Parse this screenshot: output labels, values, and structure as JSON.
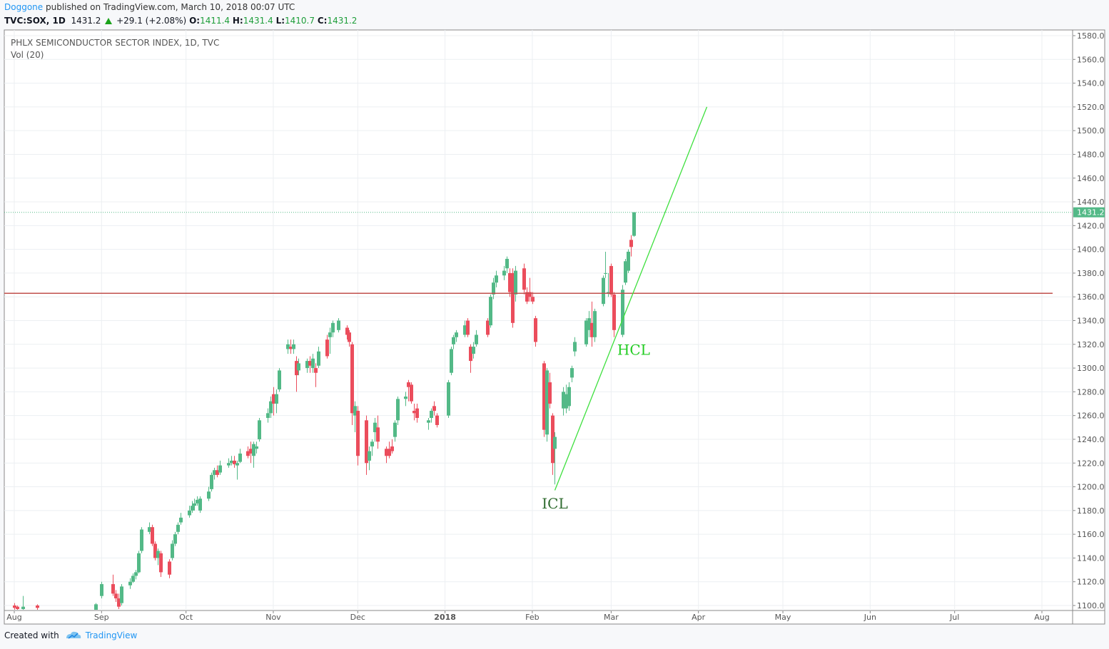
{
  "header": {
    "author": "Doggone",
    "published": "published on TradingView.com, March 10, 2018 00:07 UTC",
    "symbol": "TVC:SOX, 1D",
    "last": "1431.2",
    "change": "+29.1 (+2.08%)",
    "o_label": "O:",
    "o_value": "1411.4",
    "h_label": "H:",
    "h_value": "1431.4",
    "l_label": "L:",
    "l_value": "1410.7",
    "c_label": "C:",
    "c_value": "1431.2"
  },
  "legend": {
    "title": "PHLX SEMICONDUCTOR SECTOR INDEX, 1D, TVC",
    "study": "Vol (20)"
  },
  "footer": {
    "created_with": "Created with",
    "brand": "TradingView"
  },
  "colors": {
    "up": "#53b987",
    "down": "#eb4d5c",
    "trendline": "#3ee03e",
    "hline": "#c0504d",
    "price_tag": "#53b987",
    "icl_text": "#2f6b2f",
    "hcl_text": "#22cc22"
  },
  "chart_data": {
    "type": "candlestick",
    "title": "PHLX SEMICONDUCTOR SECTOR INDEX, 1D, TVC",
    "x_tick_labels": [
      "Aug",
      "Sep",
      "Oct",
      "Nov",
      "Dec",
      "2018",
      "Feb",
      "Mar",
      "Apr",
      "May",
      "Jun",
      "Jul",
      "Aug"
    ],
    "y_tick_labels": [
      "1100.0",
      "1120.0",
      "1140.0",
      "1160.0",
      "1180.0",
      "1200.0",
      "1220.0",
      "1240.0",
      "1260.0",
      "1280.0",
      "1300.0",
      "1320.0",
      "1340.0",
      "1360.0",
      "1380.0",
      "1400.0",
      "1420.0",
      "1440.0",
      "1460.0",
      "1480.0",
      "1500.0",
      "1520.0",
      "1540.0",
      "1560.0",
      "1580.0"
    ],
    "ylim": [
      1100,
      1580
    ],
    "last_price": 1431.2,
    "last_price_label": "1431.2",
    "horizontal_line": 1363,
    "trendline": {
      "from": {
        "date": "2018-02-09",
        "value": 1197
      },
      "to": {
        "date": "2018-04-04",
        "value": 1520
      }
    },
    "annotations": [
      {
        "text": "ICL",
        "date": "2018-02-09",
        "value": 1190
      },
      {
        "text": "HCL",
        "date": "2018-03-09",
        "value": 1316
      }
    ],
    "candles": [
      {
        "date": "2017-08-01",
        "o": 1100,
        "h": 1102,
        "l": 1095,
        "c": 1098
      },
      {
        "date": "2017-08-02",
        "o": 1099,
        "h": 1100,
        "l": 1094,
        "c": 1097
      },
      {
        "date": "2017-08-04",
        "o": 1097,
        "h": 1108,
        "l": 1094,
        "c": 1099
      },
      {
        "date": "2017-08-09",
        "o": 1100,
        "h": 1101,
        "l": 1095,
        "c": 1098
      },
      {
        "date": "2017-08-30",
        "o": 1094,
        "h": 1102,
        "l": 1092,
        "c": 1101
      },
      {
        "date": "2017-09-01",
        "o": 1108,
        "h": 1120,
        "l": 1106,
        "c": 1118
      },
      {
        "date": "2017-09-05",
        "o": 1118,
        "h": 1126,
        "l": 1108,
        "c": 1110
      },
      {
        "date": "2017-09-06",
        "o": 1110,
        "h": 1113,
        "l": 1103,
        "c": 1106
      },
      {
        "date": "2017-09-07",
        "o": 1106,
        "h": 1110,
        "l": 1097,
        "c": 1099
      },
      {
        "date": "2017-09-08",
        "o": 1102,
        "h": 1118,
        "l": 1100,
        "c": 1116
      },
      {
        "date": "2017-09-11",
        "o": 1117,
        "h": 1123,
        "l": 1114,
        "c": 1120
      },
      {
        "date": "2017-09-12",
        "o": 1120,
        "h": 1127,
        "l": 1119,
        "c": 1125
      },
      {
        "date": "2017-09-13",
        "o": 1125,
        "h": 1130,
        "l": 1122,
        "c": 1128
      },
      {
        "date": "2017-09-14",
        "o": 1128,
        "h": 1146,
        "l": 1127,
        "c": 1144
      },
      {
        "date": "2017-09-15",
        "o": 1146,
        "h": 1166,
        "l": 1144,
        "c": 1164
      },
      {
        "date": "2017-09-18",
        "o": 1162,
        "h": 1170,
        "l": 1160,
        "c": 1166
      },
      {
        "date": "2017-09-19",
        "o": 1166,
        "h": 1168,
        "l": 1150,
        "c": 1152
      },
      {
        "date": "2017-09-20",
        "o": 1152,
        "h": 1154,
        "l": 1138,
        "c": 1140
      },
      {
        "date": "2017-09-21",
        "o": 1140,
        "h": 1148,
        "l": 1134,
        "c": 1146
      },
      {
        "date": "2017-09-22",
        "o": 1144,
        "h": 1146,
        "l": 1124,
        "c": 1128
      },
      {
        "date": "2017-09-25",
        "o": 1137,
        "h": 1139,
        "l": 1123,
        "c": 1126
      },
      {
        "date": "2017-09-26",
        "o": 1140,
        "h": 1155,
        "l": 1138,
        "c": 1152
      },
      {
        "date": "2017-09-27",
        "o": 1152,
        "h": 1162,
        "l": 1150,
        "c": 1160
      },
      {
        "date": "2017-09-28",
        "o": 1162,
        "h": 1170,
        "l": 1160,
        "c": 1168
      },
      {
        "date": "2017-09-29",
        "o": 1170,
        "h": 1178,
        "l": 1168,
        "c": 1174
      },
      {
        "date": "2017-10-02",
        "o": 1176,
        "h": 1184,
        "l": 1174,
        "c": 1180
      },
      {
        "date": "2017-10-03",
        "o": 1180,
        "h": 1188,
        "l": 1178,
        "c": 1184
      },
      {
        "date": "2017-10-04",
        "o": 1184,
        "h": 1190,
        "l": 1180,
        "c": 1186
      },
      {
        "date": "2017-10-05",
        "o": 1186,
        "h": 1192,
        "l": 1184,
        "c": 1189
      },
      {
        "date": "2017-10-06",
        "o": 1180,
        "h": 1192,
        "l": 1178,
        "c": 1190
      },
      {
        "date": "2017-10-09",
        "o": 1190,
        "h": 1200,
        "l": 1188,
        "c": 1196
      },
      {
        "date": "2017-10-10",
        "o": 1198,
        "h": 1212,
        "l": 1196,
        "c": 1210
      },
      {
        "date": "2017-10-11",
        "o": 1210,
        "h": 1216,
        "l": 1206,
        "c": 1214
      },
      {
        "date": "2017-10-12",
        "o": 1214,
        "h": 1218,
        "l": 1208,
        "c": 1210
      },
      {
        "date": "2017-10-13",
        "o": 1212,
        "h": 1222,
        "l": 1210,
        "c": 1218
      },
      {
        "date": "2017-10-16",
        "o": 1218,
        "h": 1224,
        "l": 1216,
        "c": 1220
      },
      {
        "date": "2017-10-17",
        "o": 1220,
        "h": 1226,
        "l": 1218,
        "c": 1222
      },
      {
        "date": "2017-10-18",
        "o": 1222,
        "h": 1226,
        "l": 1216,
        "c": 1219
      },
      {
        "date": "2017-10-19",
        "o": 1218,
        "h": 1222,
        "l": 1206,
        "c": 1220
      },
      {
        "date": "2017-10-20",
        "o": 1221,
        "h": 1232,
        "l": 1220,
        "c": 1228
      },
      {
        "date": "2017-10-23",
        "o": 1230,
        "h": 1234,
        "l": 1224,
        "c": 1226
      },
      {
        "date": "2017-10-24",
        "o": 1232,
        "h": 1238,
        "l": 1220,
        "c": 1228
      },
      {
        "date": "2017-10-25",
        "o": 1226,
        "h": 1238,
        "l": 1216,
        "c": 1236
      },
      {
        "date": "2017-10-26",
        "o": 1232,
        "h": 1238,
        "l": 1228,
        "c": 1234
      },
      {
        "date": "2017-10-27",
        "o": 1240,
        "h": 1258,
        "l": 1238,
        "c": 1256
      },
      {
        "date": "2017-10-30",
        "o": 1258,
        "h": 1266,
        "l": 1254,
        "c": 1262
      },
      {
        "date": "2017-10-31",
        "o": 1262,
        "h": 1276,
        "l": 1258,
        "c": 1272
      },
      {
        "date": "2017-11-01",
        "o": 1278,
        "h": 1284,
        "l": 1260,
        "c": 1270
      },
      {
        "date": "2017-11-02",
        "o": 1270,
        "h": 1282,
        "l": 1262,
        "c": 1278
      },
      {
        "date": "2017-11-03",
        "o": 1282,
        "h": 1300,
        "l": 1280,
        "c": 1298
      },
      {
        "date": "2017-11-06",
        "o": 1316,
        "h": 1324,
        "l": 1312,
        "c": 1320
      },
      {
        "date": "2017-11-07",
        "o": 1318,
        "h": 1324,
        "l": 1312,
        "c": 1316
      },
      {
        "date": "2017-11-08",
        "o": 1316,
        "h": 1324,
        "l": 1312,
        "c": 1320
      },
      {
        "date": "2017-11-09",
        "o": 1306,
        "h": 1310,
        "l": 1280,
        "c": 1294
      },
      {
        "date": "2017-11-10",
        "o": 1298,
        "h": 1308,
        "l": 1294,
        "c": 1304
      },
      {
        "date": "2017-11-13",
        "o": 1300,
        "h": 1308,
        "l": 1296,
        "c": 1306
      },
      {
        "date": "2017-11-14",
        "o": 1306,
        "h": 1310,
        "l": 1296,
        "c": 1302
      },
      {
        "date": "2017-11-15",
        "o": 1300,
        "h": 1312,
        "l": 1296,
        "c": 1308
      },
      {
        "date": "2017-11-16",
        "o": 1300,
        "h": 1304,
        "l": 1284,
        "c": 1296
      },
      {
        "date": "2017-11-17",
        "o": 1302,
        "h": 1318,
        "l": 1300,
        "c": 1314
      },
      {
        "date": "2017-11-20",
        "o": 1324,
        "h": 1328,
        "l": 1308,
        "c": 1310
      },
      {
        "date": "2017-11-21",
        "o": 1326,
        "h": 1334,
        "l": 1312,
        "c": 1330
      },
      {
        "date": "2017-11-22",
        "o": 1330,
        "h": 1340,
        "l": 1326,
        "c": 1338
      },
      {
        "date": "2017-11-24",
        "o": 1332,
        "h": 1342,
        "l": 1330,
        "c": 1340
      },
      {
        "date": "2017-11-27",
        "o": 1334,
        "h": 1336,
        "l": 1324,
        "c": 1328
      },
      {
        "date": "2017-11-28",
        "o": 1330,
        "h": 1332,
        "l": 1318,
        "c": 1322
      },
      {
        "date": "2017-11-29",
        "o": 1320,
        "h": 1322,
        "l": 1252,
        "c": 1262
      },
      {
        "date": "2017-11-30",
        "o": 1260,
        "h": 1272,
        "l": 1246,
        "c": 1268
      },
      {
        "date": "2017-12-01",
        "o": 1264,
        "h": 1268,
        "l": 1218,
        "c": 1226
      },
      {
        "date": "2017-12-04",
        "o": 1256,
        "h": 1260,
        "l": 1210,
        "c": 1220
      },
      {
        "date": "2017-12-05",
        "o": 1222,
        "h": 1234,
        "l": 1214,
        "c": 1230
      },
      {
        "date": "2017-12-06",
        "o": 1234,
        "h": 1240,
        "l": 1226,
        "c": 1238
      },
      {
        "date": "2017-12-07",
        "o": 1246,
        "h": 1258,
        "l": 1238,
        "c": 1254
      },
      {
        "date": "2017-12-08",
        "o": 1250,
        "h": 1260,
        "l": 1232,
        "c": 1238
      },
      {
        "date": "2017-12-11",
        "o": 1232,
        "h": 1234,
        "l": 1220,
        "c": 1226
      },
      {
        "date": "2017-12-12",
        "o": 1232,
        "h": 1238,
        "l": 1224,
        "c": 1226
      },
      {
        "date": "2017-12-13",
        "o": 1234,
        "h": 1240,
        "l": 1228,
        "c": 1230
      },
      {
        "date": "2017-12-14",
        "o": 1242,
        "h": 1256,
        "l": 1238,
        "c": 1254
      },
      {
        "date": "2017-12-15",
        "o": 1256,
        "h": 1276,
        "l": 1252,
        "c": 1274
      },
      {
        "date": "2017-12-18",
        "o": 1274,
        "h": 1280,
        "l": 1268,
        "c": 1276
      },
      {
        "date": "2017-12-19",
        "o": 1288,
        "h": 1290,
        "l": 1272,
        "c": 1284
      },
      {
        "date": "2017-12-20",
        "o": 1286,
        "h": 1288,
        "l": 1270,
        "c": 1272
      },
      {
        "date": "2017-12-21",
        "o": 1264,
        "h": 1270,
        "l": 1256,
        "c": 1262
      },
      {
        "date": "2017-12-22",
        "o": 1266,
        "h": 1270,
        "l": 1254,
        "c": 1258
      },
      {
        "date": "2017-12-26",
        "o": 1254,
        "h": 1258,
        "l": 1248,
        "c": 1256
      },
      {
        "date": "2017-12-27",
        "o": 1258,
        "h": 1266,
        "l": 1254,
        "c": 1264
      },
      {
        "date": "2017-12-28",
        "o": 1268,
        "h": 1272,
        "l": 1260,
        "c": 1264
      },
      {
        "date": "2017-12-29",
        "o": 1260,
        "h": 1262,
        "l": 1250,
        "c": 1252
      },
      {
        "date": "2018-01-02",
        "o": 1260,
        "h": 1290,
        "l": 1258,
        "c": 1288
      },
      {
        "date": "2018-01-03",
        "o": 1296,
        "h": 1318,
        "l": 1294,
        "c": 1316
      },
      {
        "date": "2018-01-04",
        "o": 1320,
        "h": 1328,
        "l": 1316,
        "c": 1326
      },
      {
        "date": "2018-01-05",
        "o": 1326,
        "h": 1332,
        "l": 1322,
        "c": 1330
      },
      {
        "date": "2018-01-08",
        "o": 1328,
        "h": 1340,
        "l": 1326,
        "c": 1336
      },
      {
        "date": "2018-01-09",
        "o": 1340,
        "h": 1342,
        "l": 1326,
        "c": 1328
      },
      {
        "date": "2018-01-10",
        "o": 1318,
        "h": 1320,
        "l": 1296,
        "c": 1306
      },
      {
        "date": "2018-01-11",
        "o": 1312,
        "h": 1322,
        "l": 1308,
        "c": 1318
      },
      {
        "date": "2018-01-12",
        "o": 1320,
        "h": 1332,
        "l": 1318,
        "c": 1328
      },
      {
        "date": "2018-01-16",
        "o": 1340,
        "h": 1342,
        "l": 1326,
        "c": 1328
      },
      {
        "date": "2018-01-17",
        "o": 1336,
        "h": 1362,
        "l": 1334,
        "c": 1360
      },
      {
        "date": "2018-01-18",
        "o": 1362,
        "h": 1376,
        "l": 1358,
        "c": 1372
      },
      {
        "date": "2018-01-19",
        "o": 1372,
        "h": 1382,
        "l": 1368,
        "c": 1378
      },
      {
        "date": "2018-01-22",
        "o": 1378,
        "h": 1386,
        "l": 1374,
        "c": 1382
      },
      {
        "date": "2018-01-23",
        "o": 1384,
        "h": 1394,
        "l": 1380,
        "c": 1392
      },
      {
        "date": "2018-01-24",
        "o": 1380,
        "h": 1384,
        "l": 1360,
        "c": 1364
      },
      {
        "date": "2018-01-25",
        "o": 1380,
        "h": 1384,
        "l": 1334,
        "c": 1338
      },
      {
        "date": "2018-01-26",
        "o": 1362,
        "h": 1386,
        "l": 1356,
        "c": 1382
      },
      {
        "date": "2018-01-29",
        "o": 1384,
        "h": 1388,
        "l": 1362,
        "c": 1366
      },
      {
        "date": "2018-01-30",
        "o": 1364,
        "h": 1368,
        "l": 1354,
        "c": 1356
      },
      {
        "date": "2018-01-31",
        "o": 1364,
        "h": 1376,
        "l": 1356,
        "c": 1360
      },
      {
        "date": "2018-02-01",
        "o": 1360,
        "h": 1364,
        "l": 1354,
        "c": 1356
      },
      {
        "date": "2018-02-02",
        "o": 1342,
        "h": 1344,
        "l": 1318,
        "c": 1322
      },
      {
        "date": "2018-02-05",
        "o": 1304,
        "h": 1306,
        "l": 1242,
        "c": 1248
      },
      {
        "date": "2018-02-06",
        "o": 1244,
        "h": 1300,
        "l": 1238,
        "c": 1298
      },
      {
        "date": "2018-02-07",
        "o": 1288,
        "h": 1296,
        "l": 1266,
        "c": 1270
      },
      {
        "date": "2018-02-08",
        "o": 1260,
        "h": 1262,
        "l": 1210,
        "c": 1220
      },
      {
        "date": "2018-02-09",
        "o": 1232,
        "h": 1246,
        "l": 1202,
        "c": 1242
      },
      {
        "date": "2018-02-12",
        "o": 1266,
        "h": 1284,
        "l": 1260,
        "c": 1280
      },
      {
        "date": "2018-02-13",
        "o": 1266,
        "h": 1286,
        "l": 1262,
        "c": 1278
      },
      {
        "date": "2018-02-14",
        "o": 1268,
        "h": 1288,
        "l": 1264,
        "c": 1284
      },
      {
        "date": "2018-02-15",
        "o": 1292,
        "h": 1302,
        "l": 1288,
        "c": 1300
      },
      {
        "date": "2018-02-16",
        "o": 1314,
        "h": 1326,
        "l": 1310,
        "c": 1322
      },
      {
        "date": "2018-02-20",
        "o": 1320,
        "h": 1342,
        "l": 1318,
        "c": 1340
      },
      {
        "date": "2018-02-21",
        "o": 1332,
        "h": 1348,
        "l": 1326,
        "c": 1342
      },
      {
        "date": "2018-02-22",
        "o": 1338,
        "h": 1356,
        "l": 1318,
        "c": 1326
      },
      {
        "date": "2018-02-23",
        "o": 1326,
        "h": 1350,
        "l": 1322,
        "c": 1348
      },
      {
        "date": "2018-02-26",
        "o": 1354,
        "h": 1378,
        "l": 1352,
        "c": 1376
      },
      {
        "date": "2018-02-27",
        "o": 1380,
        "h": 1398,
        "l": 1376,
        "c": 1380
      },
      {
        "date": "2018-02-28",
        "o": 1364,
        "h": 1380,
        "l": 1360,
        "c": 1364
      },
      {
        "date": "2018-03-01",
        "o": 1386,
        "h": 1388,
        "l": 1360,
        "c": 1362
      },
      {
        "date": "2018-03-02",
        "o": 1362,
        "h": 1364,
        "l": 1326,
        "c": 1332
      },
      {
        "date": "2018-03-05",
        "o": 1328,
        "h": 1370,
        "l": 1326,
        "c": 1366
      },
      {
        "date": "2018-03-06",
        "o": 1372,
        "h": 1392,
        "l": 1370,
        "c": 1390
      },
      {
        "date": "2018-03-07",
        "o": 1382,
        "h": 1400,
        "l": 1380,
        "c": 1398
      },
      {
        "date": "2018-03-08",
        "o": 1408,
        "h": 1412,
        "l": 1394,
        "c": 1402
      },
      {
        "date": "2018-03-09",
        "o": 1411.4,
        "h": 1431.4,
        "l": 1410.7,
        "c": 1431.2
      }
    ]
  }
}
